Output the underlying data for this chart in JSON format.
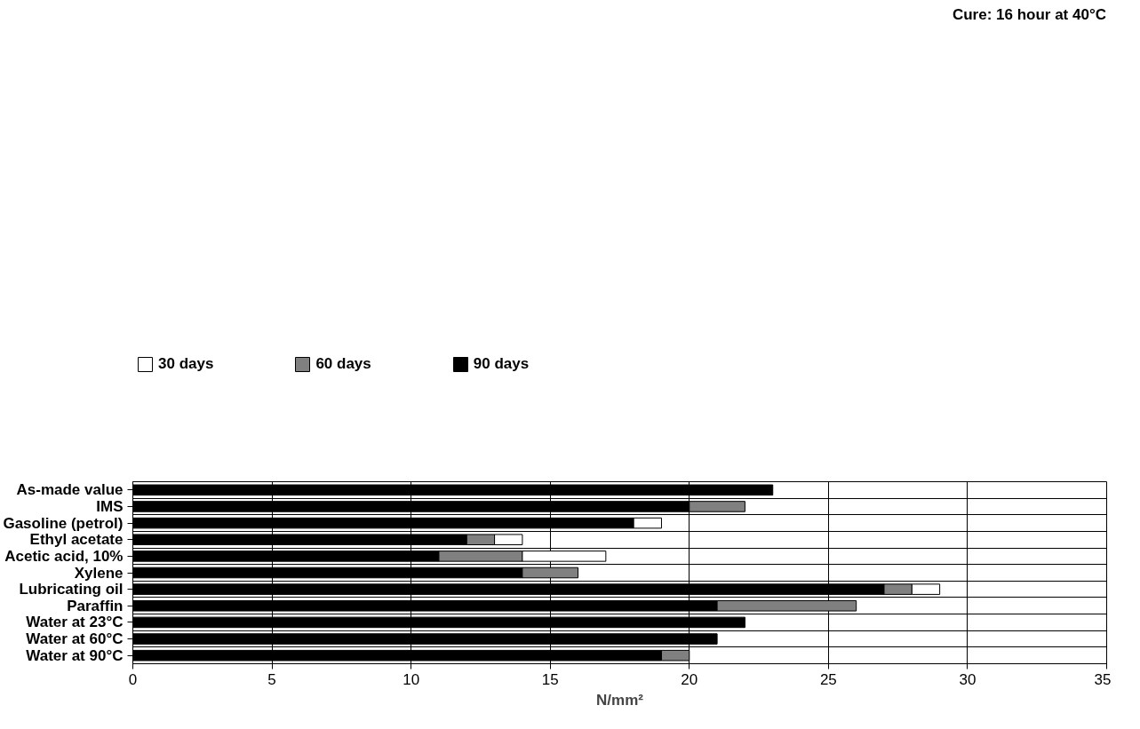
{
  "chart_data": {
    "type": "bar",
    "orientation": "horizontal",
    "stacked": true,
    "categories": [
      "As-made value",
      "IMS",
      "Gasoline (petrol)",
      "Ethyl acetate",
      "Acetic acid, 10%",
      "Xylene",
      "Lubricating oil",
      "Paraffin",
      "Water at 23°C",
      "Water at 60°C",
      "Water at 90°C"
    ],
    "series": [
      {
        "name": "90 days",
        "color": "#000000",
        "values": [
          23,
          20,
          18,
          12,
          11,
          14,
          27,
          21,
          22,
          21,
          19
        ]
      },
      {
        "name": "60 days",
        "color": "#808080",
        "values": [
          null,
          2,
          null,
          1,
          3,
          2,
          1,
          5,
          null,
          null,
          1
        ]
      },
      {
        "name": "30 days",
        "color": "#ffffff",
        "values": [
          null,
          null,
          1,
          1,
          3,
          null,
          1,
          null,
          null,
          null,
          null
        ]
      }
    ],
    "xlabel": "N/mm²",
    "xlim": [
      0,
      35
    ],
    "xticks": [
      0,
      5,
      10,
      15,
      20,
      25,
      30,
      35
    ],
    "grid": true,
    "legend": "top left",
    "annotations": [
      "Cure: 16 hour at 40°C"
    ]
  }
}
